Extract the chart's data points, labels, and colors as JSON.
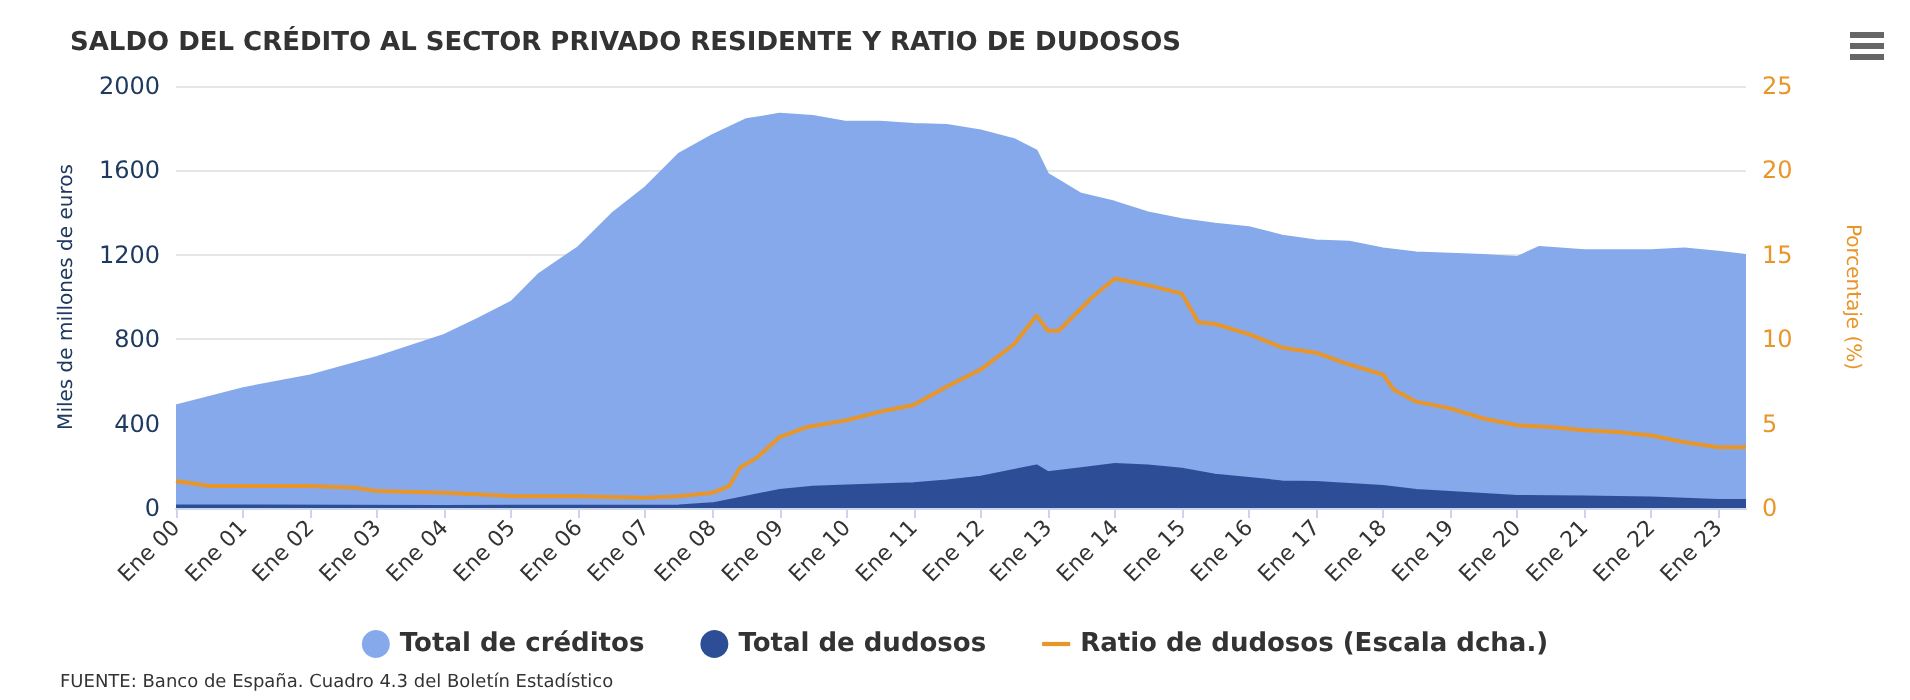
{
  "chart_data": {
    "type": "area",
    "title": "SALDO DEL CRÉDITO AL SECTOR PRIVADO RESIDENTE Y RATIO DE DUDOSOS",
    "ylabel": "Miles de millones de euros",
    "y2label": "Porcentaje (%)",
    "annotations": [
      "FUENTE: Banco de España. Cuadro 4.3 del Boletín Estadístico"
    ],
    "xlim": [
      "2000-01",
      "2023-06"
    ],
    "xticks": [
      {
        "value": "2000-01",
        "label": "Ene 00"
      },
      {
        "value": "2001-01",
        "label": "Ene 01"
      },
      {
        "value": "2002-01",
        "label": "Ene 02"
      },
      {
        "value": "2003-01",
        "label": "Ene 03"
      },
      {
        "value": "2004-01",
        "label": "Ene 04"
      },
      {
        "value": "2005-01",
        "label": "Ene 05"
      },
      {
        "value": "2006-01",
        "label": "Ene 06"
      },
      {
        "value": "2007-01",
        "label": "Ene 07"
      },
      {
        "value": "2008-01",
        "label": "Ene 08"
      },
      {
        "value": "2009-01",
        "label": "Ene 09"
      },
      {
        "value": "2010-01",
        "label": "Ene 10"
      },
      {
        "value": "2011-01",
        "label": "Ene 11"
      },
      {
        "value": "2012-01",
        "label": "Ene 12"
      },
      {
        "value": "2013-01",
        "label": "Ene 13"
      },
      {
        "value": "2014-01",
        "label": "Ene 14"
      },
      {
        "value": "2015-01",
        "label": "Ene 15"
      },
      {
        "value": "2016-01",
        "label": "Ene 16"
      },
      {
        "value": "2017-01",
        "label": "Ene 17"
      },
      {
        "value": "2018-01",
        "label": "Ene 18"
      },
      {
        "value": "2019-01",
        "label": "Ene 19"
      },
      {
        "value": "2020-01",
        "label": "Ene 20"
      },
      {
        "value": "2021-01",
        "label": "Ene 21"
      },
      {
        "value": "2022-01",
        "label": "Ene 22"
      },
      {
        "value": "2023-01",
        "label": "Ene 23"
      }
    ],
    "ylim": [
      0,
      2000
    ],
    "yticks": [
      0,
      400,
      800,
      1200,
      1600,
      2000
    ],
    "y2lim": [
      0,
      25
    ],
    "y2ticks": [
      0,
      5,
      10,
      15,
      20,
      25
    ],
    "grid": "y",
    "legend": "bottom",
    "marker": "none",
    "series": [
      {
        "name": "Total de créditos",
        "color": "#86a9eb",
        "x": [
          "2000-01",
          "2001-01",
          "2002-01",
          "2003-01",
          "2004-01",
          "2004-07",
          "2005-01",
          "2005-06",
          "2006-01",
          "2006-07",
          "2007-01",
          "2007-07",
          "2008-01",
          "2008-07",
          "2009-01",
          "2009-07",
          "2010-01",
          "2010-07",
          "2011-01",
          "2011-07",
          "2012-01",
          "2012-07",
          "2012-11",
          "2013-01",
          "2013-07",
          "2014-01",
          "2014-07",
          "2015-01",
          "2015-07",
          "2016-01",
          "2016-07",
          "2017-01",
          "2017-07",
          "2018-01",
          "2018-07",
          "2019-01",
          "2019-07",
          "2020-01",
          "2020-05",
          "2021-01",
          "2021-07",
          "2022-01",
          "2022-07",
          "2023-01",
          "2023-06"
        ],
        "values": [
          486,
          568,
          628,
          716,
          820,
          896,
          978,
          1110,
          1237,
          1394,
          1520,
          1678,
          1767,
          1842,
          1868,
          1858,
          1830,
          1830,
          1820,
          1815,
          1789,
          1748,
          1694,
          1584,
          1489,
          1451,
          1401,
          1369,
          1347,
          1331,
          1290,
          1268,
          1262,
          1230,
          1211,
          1205,
          1199,
          1189,
          1237,
          1221,
          1221,
          1221,
          1230,
          1215,
          1199
        ]
      },
      {
        "name": "Total de dudosos",
        "color": "#2d4e96",
        "x": [
          "2000-01",
          "2004-01",
          "2007-07",
          "2008-01",
          "2008-07",
          "2009-01",
          "2009-07",
          "2010-01",
          "2011-01",
          "2011-07",
          "2012-01",
          "2012-07",
          "2012-11",
          "2013-01",
          "2013-07",
          "2014-01",
          "2014-07",
          "2015-01",
          "2015-07",
          "2016-01",
          "2016-07",
          "2017-01",
          "2017-07",
          "2018-01",
          "2018-07",
          "2019-01",
          "2019-07",
          "2020-01",
          "2021-01",
          "2022-01",
          "2023-01",
          "2023-06"
        ],
        "values": [
          12,
          10,
          12,
          22,
          54,
          85,
          101,
          107,
          117,
          130,
          148,
          180,
          202,
          170,
          189,
          208,
          202,
          186,
          158,
          142,
          126,
          123,
          114,
          104,
          85,
          76,
          66,
          57,
          54,
          50,
          38,
          38
        ]
      },
      {
        "name": "Ratio de dudosos (Escala dcha.)",
        "type": "line",
        "axis": "y2",
        "color": "#e8962a",
        "x": [
          "2000-01",
          "2000-07",
          "2002-01",
          "2002-09",
          "2003-01",
          "2004-01",
          "2005-01",
          "2006-01",
          "2007-01",
          "2007-07",
          "2008-01",
          "2008-04",
          "2008-06",
          "2008-09",
          "2009-01",
          "2009-06",
          "2010-01",
          "2010-07",
          "2011-01",
          "2011-07",
          "2012-01",
          "2012-07",
          "2012-11",
          "2013-01",
          "2013-03",
          "2013-09",
          "2014-01",
          "2014-07",
          "2015-01",
          "2015-04",
          "2015-07",
          "2016-01",
          "2016-07",
          "2017-01",
          "2017-07",
          "2018-01",
          "2018-03",
          "2018-07",
          "2019-01",
          "2019-07",
          "2020-01",
          "2020-07",
          "2021-01",
          "2021-07",
          "2022-01",
          "2022-07",
          "2023-01",
          "2023-06"
        ],
        "values": [
          1.6,
          1.3,
          1.3,
          1.2,
          1.0,
          0.9,
          0.7,
          0.7,
          0.6,
          0.7,
          0.9,
          1.3,
          2.4,
          3.0,
          4.2,
          4.8,
          5.2,
          5.7,
          6.1,
          7.2,
          8.2,
          9.7,
          11.4,
          10.5,
          10.5,
          12.5,
          13.6,
          13.2,
          12.7,
          11.0,
          10.9,
          10.3,
          9.5,
          9.2,
          8.5,
          7.9,
          7.0,
          6.3,
          5.9,
          5.3,
          4.9,
          4.8,
          4.6,
          4.5,
          4.3,
          3.9,
          3.6,
          3.6
        ]
      }
    ]
  }
}
